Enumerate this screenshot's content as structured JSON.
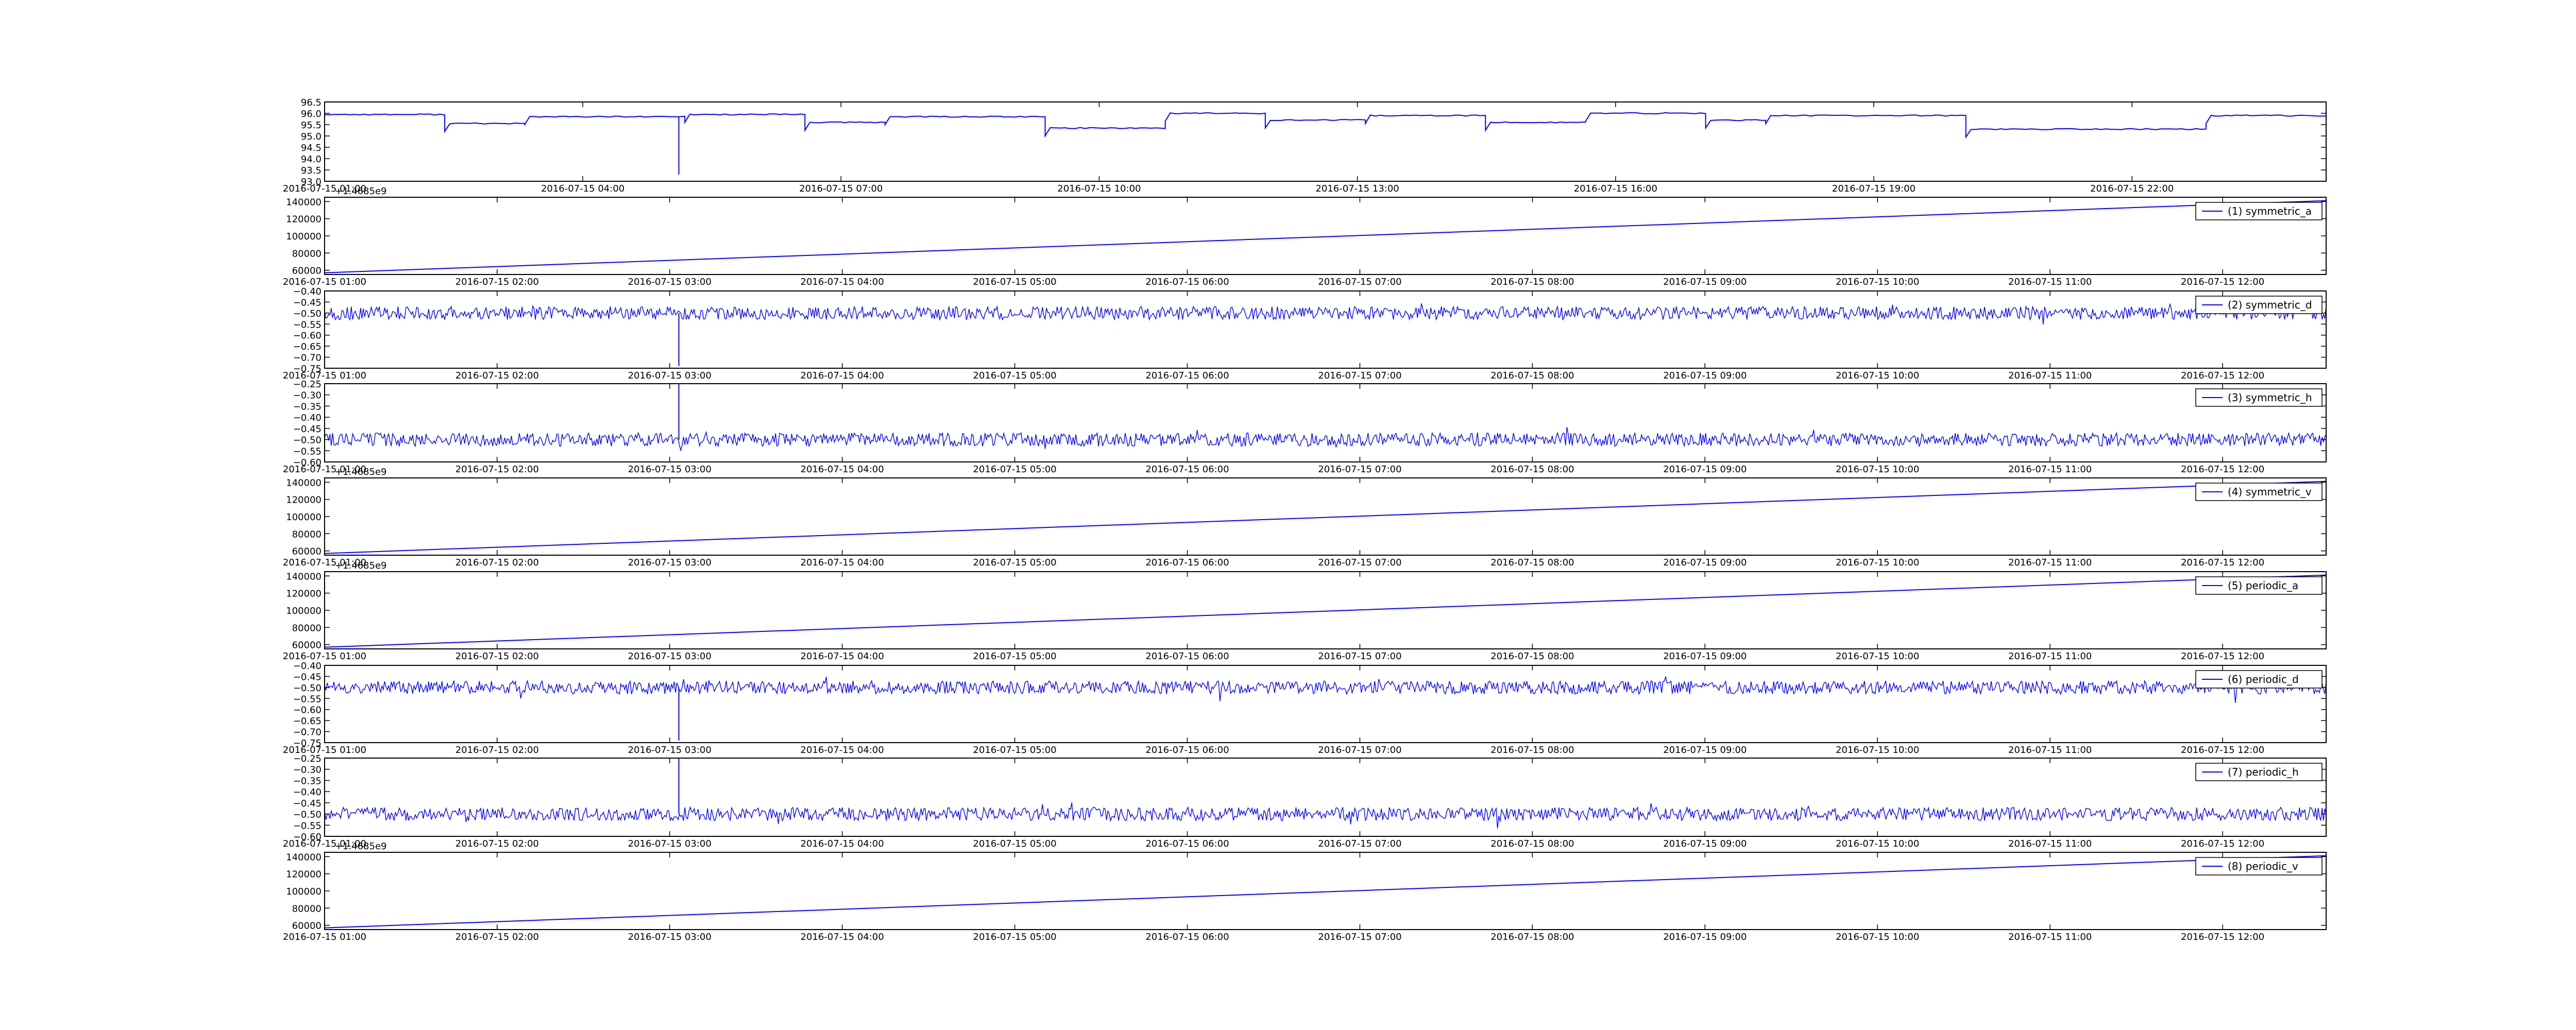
{
  "figure": {
    "background": "#ffffff",
    "line_color": "#0000ff"
  },
  "chart_data": [
    {
      "type": "line",
      "title": "",
      "xlabel": "",
      "ylabel": "",
      "legend": null,
      "x_ticks": [
        "2016-07-15 01:00",
        "2016-07-15 04:00",
        "2016-07-15 07:00",
        "2016-07-15 10:00",
        "2016-07-15 13:00",
        "2016-07-15 16:00",
        "2016-07-15 19:00",
        "2016-07-15 22:00"
      ],
      "x_tick_pos": [
        0,
        0.129,
        0.258,
        0.387,
        0.516,
        0.645,
        0.774,
        0.903
      ],
      "y_ticks": [
        "93.0",
        "93.5",
        "94.0",
        "94.5",
        "95.0",
        "95.5",
        "96.0",
        "96.5"
      ],
      "ylim": [
        93.0,
        96.5
      ],
      "signal": "steps",
      "segments": [
        [
          0.0,
          0.06,
          95.95
        ],
        [
          0.06,
          0.1,
          95.55
        ],
        [
          0.1,
          0.18,
          95.85
        ],
        [
          0.18,
          0.24,
          95.95
        ],
        [
          0.24,
          0.28,
          95.6
        ],
        [
          0.28,
          0.36,
          95.85
        ],
        [
          0.36,
          0.42,
          95.35
        ],
        [
          0.42,
          0.47,
          96.0
        ],
        [
          0.47,
          0.52,
          95.7
        ],
        [
          0.52,
          0.58,
          95.9
        ],
        [
          0.58,
          0.63,
          95.6
        ],
        [
          0.63,
          0.69,
          96.0
        ],
        [
          0.69,
          0.72,
          95.7
        ],
        [
          0.72,
          0.82,
          95.9
        ],
        [
          0.82,
          0.94,
          95.3
        ],
        [
          0.94,
          1.0,
          95.9
        ]
      ],
      "spikes": [
        [
          0.177,
          93.3
        ]
      ]
    },
    {
      "type": "line",
      "title": "",
      "xlabel": "",
      "ylabel": "",
      "legend": "(1) symmetric_a",
      "offset_label": "+1.4685e9",
      "x_ticks": [
        "2016-07-15 01:00",
        "2016-07-15 02:00",
        "2016-07-15 03:00",
        "2016-07-15 04:00",
        "2016-07-15 05:00",
        "2016-07-15 06:00",
        "2016-07-15 07:00",
        "2016-07-15 08:00",
        "2016-07-15 09:00",
        "2016-07-15 10:00",
        "2016-07-15 11:00",
        "2016-07-15 12:00"
      ],
      "y_ticks": [
        "60000",
        "80000",
        "100000",
        "120000",
        "140000"
      ],
      "ylim": [
        55000,
        145000
      ],
      "signal": "ramp",
      "y_start": 57000,
      "y_end": 141000
    },
    {
      "type": "line",
      "title": "",
      "xlabel": "",
      "ylabel": "",
      "legend": "(2) symmetric_d",
      "x_ticks": [
        "2016-07-15 01:00",
        "2016-07-15 02:00",
        "2016-07-15 03:00",
        "2016-07-15 04:00",
        "2016-07-15 05:00",
        "2016-07-15 06:00",
        "2016-07-15 07:00",
        "2016-07-15 08:00",
        "2016-07-15 09:00",
        "2016-07-15 10:00",
        "2016-07-15 11:00",
        "2016-07-15 12:00"
      ],
      "y_ticks": [
        "−0.75",
        "−0.70",
        "−0.65",
        "−0.60",
        "−0.55",
        "−0.50",
        "−0.45",
        "−0.40"
      ],
      "ylim": [
        -0.75,
        -0.4
      ],
      "signal": "noise",
      "mean": -0.5,
      "amp": 0.03,
      "spikes": [
        [
          0.177,
          -0.74
        ]
      ]
    },
    {
      "type": "line",
      "title": "",
      "xlabel": "",
      "ylabel": "",
      "legend": "(3) symmetric_h",
      "x_ticks": [
        "2016-07-15 01:00",
        "2016-07-15 02:00",
        "2016-07-15 03:00",
        "2016-07-15 04:00",
        "2016-07-15 05:00",
        "2016-07-15 06:00",
        "2016-07-15 07:00",
        "2016-07-15 08:00",
        "2016-07-15 09:00",
        "2016-07-15 10:00",
        "2016-07-15 11:00",
        "2016-07-15 12:00"
      ],
      "y_ticks": [
        "−0.60",
        "−0.55",
        "−0.50",
        "−0.45",
        "−0.40",
        "−0.35",
        "−0.30",
        "−0.25"
      ],
      "ylim": [
        -0.6,
        -0.25
      ],
      "signal": "noise",
      "mean": -0.5,
      "amp": 0.03,
      "spikes": [
        [
          0.177,
          -0.25
        ]
      ]
    },
    {
      "type": "line",
      "title": "",
      "xlabel": "",
      "ylabel": "",
      "legend": "(4) symmetric_v",
      "offset_label": "+1.4685e9",
      "x_ticks": [
        "2016-07-15 01:00",
        "2016-07-15 02:00",
        "2016-07-15 03:00",
        "2016-07-15 04:00",
        "2016-07-15 05:00",
        "2016-07-15 06:00",
        "2016-07-15 07:00",
        "2016-07-15 08:00",
        "2016-07-15 09:00",
        "2016-07-15 10:00",
        "2016-07-15 11:00",
        "2016-07-15 12:00"
      ],
      "y_ticks": [
        "60000",
        "80000",
        "100000",
        "120000",
        "140000"
      ],
      "ylim": [
        55000,
        145000
      ],
      "signal": "ramp",
      "y_start": 57000,
      "y_end": 141000
    },
    {
      "type": "line",
      "title": "",
      "xlabel": "",
      "ylabel": "",
      "legend": "(5) periodic_a",
      "offset_label": "+1.4685e9",
      "x_ticks": [
        "2016-07-15 01:00",
        "2016-07-15 02:00",
        "2016-07-15 03:00",
        "2016-07-15 04:00",
        "2016-07-15 05:00",
        "2016-07-15 06:00",
        "2016-07-15 07:00",
        "2016-07-15 08:00",
        "2016-07-15 09:00",
        "2016-07-15 10:00",
        "2016-07-15 11:00",
        "2016-07-15 12:00"
      ],
      "y_ticks": [
        "60000",
        "80000",
        "100000",
        "120000",
        "140000"
      ],
      "ylim": [
        55000,
        145000
      ],
      "signal": "ramp",
      "y_start": 57000,
      "y_end": 141000
    },
    {
      "type": "line",
      "title": "",
      "xlabel": "",
      "ylabel": "",
      "legend": "(6) periodic_d",
      "x_ticks": [
        "2016-07-15 01:00",
        "2016-07-15 02:00",
        "2016-07-15 03:00",
        "2016-07-15 04:00",
        "2016-07-15 05:00",
        "2016-07-15 06:00",
        "2016-07-15 07:00",
        "2016-07-15 08:00",
        "2016-07-15 09:00",
        "2016-07-15 10:00",
        "2016-07-15 11:00",
        "2016-07-15 12:00"
      ],
      "y_ticks": [
        "−0.75",
        "−0.70",
        "−0.65",
        "−0.60",
        "−0.55",
        "−0.50",
        "−0.45",
        "−0.40"
      ],
      "ylim": [
        -0.75,
        -0.4
      ],
      "signal": "noise",
      "mean": -0.5,
      "amp": 0.03,
      "spikes": [
        [
          0.177,
          -0.74
        ]
      ]
    },
    {
      "type": "line",
      "title": "",
      "xlabel": "",
      "ylabel": "",
      "legend": "(7) periodic_h",
      "x_ticks": [
        "2016-07-15 01:00",
        "2016-07-15 02:00",
        "2016-07-15 03:00",
        "2016-07-15 04:00",
        "2016-07-15 05:00",
        "2016-07-15 06:00",
        "2016-07-15 07:00",
        "2016-07-15 08:00",
        "2016-07-15 09:00",
        "2016-07-15 10:00",
        "2016-07-15 11:00",
        "2016-07-15 12:00"
      ],
      "y_ticks": [
        "−0.60",
        "−0.55",
        "−0.50",
        "−0.45",
        "−0.40",
        "−0.35",
        "−0.30",
        "−0.25"
      ],
      "ylim": [
        -0.6,
        -0.25
      ],
      "signal": "noise",
      "mean": -0.5,
      "amp": 0.03,
      "spikes": [
        [
          0.177,
          -0.25
        ]
      ]
    },
    {
      "type": "line",
      "title": "",
      "xlabel": "",
      "ylabel": "",
      "legend": "(8) periodic_v",
      "offset_label": "+1.4685e9",
      "x_ticks": [
        "2016-07-15 01:00",
        "2016-07-15 02:00",
        "2016-07-15 03:00",
        "2016-07-15 04:00",
        "2016-07-15 05:00",
        "2016-07-15 06:00",
        "2016-07-15 07:00",
        "2016-07-15 08:00",
        "2016-07-15 09:00",
        "2016-07-15 10:00",
        "2016-07-15 11:00",
        "2016-07-15 12:00"
      ],
      "y_ticks": [
        "60000",
        "80000",
        "100000",
        "120000",
        "140000"
      ],
      "ylim": [
        55000,
        145000
      ],
      "signal": "ramp",
      "y_start": 57000,
      "y_end": 141000
    }
  ]
}
